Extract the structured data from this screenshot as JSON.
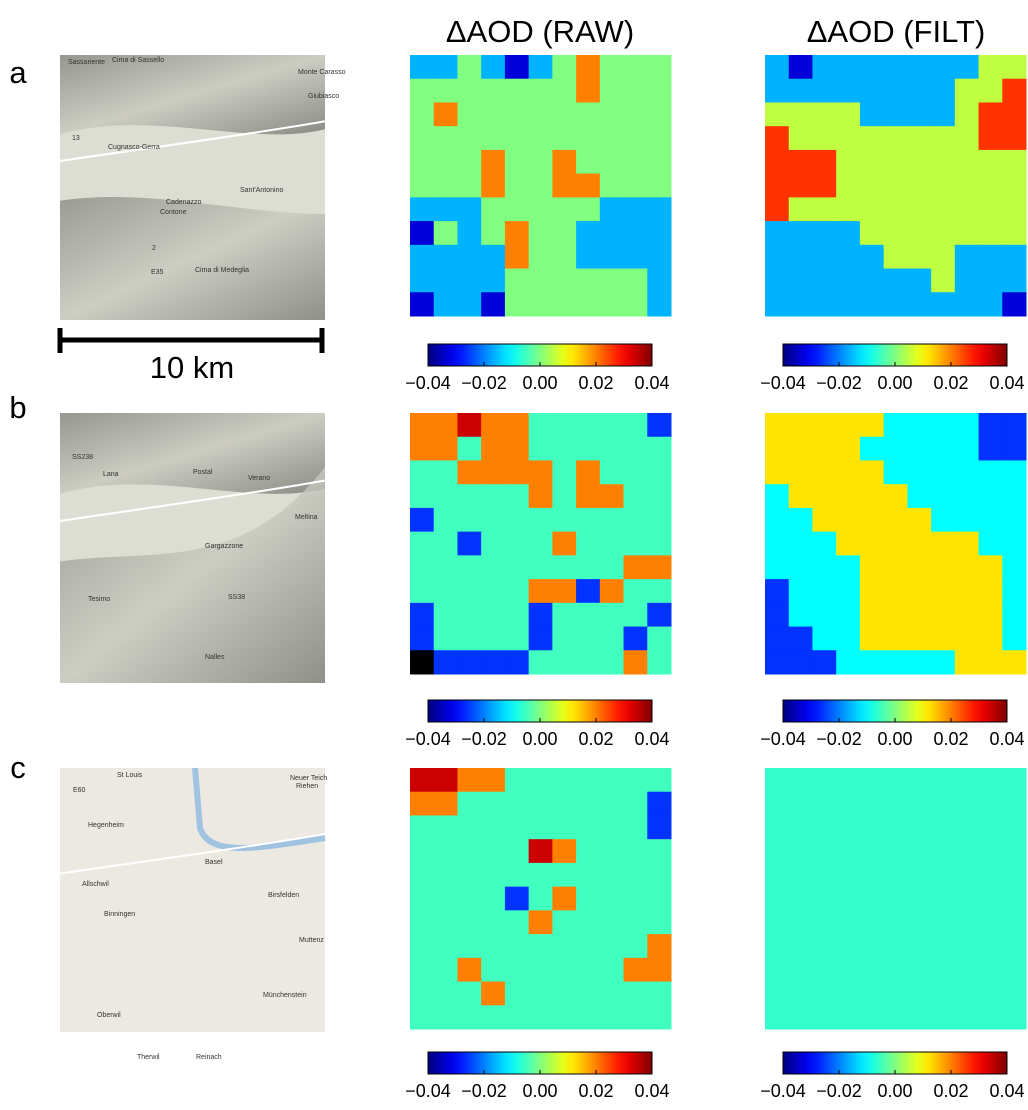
{
  "panel_labels": [
    "a",
    "b",
    "c"
  ],
  "titles": [
    "ΔAOD (RAW)",
    "ΔAOD (FILT)"
  ],
  "scale_bar": "10 km",
  "colorbar": {
    "clim": [
      -0.04,
      0.04
    ],
    "colormap": "jet",
    "ticks": [
      {
        "value": -0.04,
        "label": "−0.04"
      },
      {
        "value": -0.02,
        "label": "−0.02"
      },
      {
        "value": 0,
        "label": "0.00"
      },
      0.02,
      0.04
    ]
  },
  "rows": [
    {
      "map_labels": [
        "Sassariente",
        "Cima di Sassello",
        "Monte Carasso",
        "Cugnasco-Gerra",
        "Giubiasco",
        "Sant'Antonino",
        "Contone",
        "Cadenazzo",
        "Cima di Medeglia",
        "E35",
        "13",
        "2"
      ],
      "raw": [
        [
          -0.016,
          -0.016,
          0,
          -0.016,
          -0.033,
          -0.016,
          0,
          0.02,
          0,
          0,
          0
        ],
        [
          0,
          0,
          0,
          0,
          0,
          0,
          0,
          0.02,
          0,
          0,
          0
        ],
        [
          0,
          0.02,
          0,
          0,
          0,
          0,
          0,
          0,
          0,
          0,
          0
        ],
        [
          0,
          0,
          0,
          0,
          0,
          0,
          0,
          0,
          0,
          0,
          0
        ],
        [
          0,
          0,
          0,
          0.02,
          0,
          0,
          0.02,
          0,
          0,
          0,
          0
        ],
        [
          0,
          0,
          0,
          0.02,
          0,
          0,
          0.02,
          0.02,
          0,
          0,
          0
        ],
        [
          -0.016,
          -0.016,
          -0.016,
          0,
          0,
          0,
          0,
          0,
          -0.016,
          -0.016,
          -0.016
        ],
        [
          -0.033,
          0,
          -0.016,
          0,
          0.02,
          0,
          0,
          -0.016,
          -0.016,
          -0.016,
          -0.016
        ],
        [
          -0.016,
          -0.016,
          -0.016,
          -0.016,
          0.02,
          0,
          0,
          -0.016,
          -0.016,
          -0.016,
          -0.016
        ],
        [
          -0.016,
          -0.016,
          -0.016,
          -0.016,
          0,
          0,
          0,
          0,
          0,
          0,
          -0.016
        ],
        [
          -0.033,
          -0.016,
          -0.016,
          -0.033,
          0,
          0,
          0,
          0,
          0,
          0,
          -0.016
        ]
      ],
      "filt": [
        [
          -0.016,
          -0.033,
          -0.016,
          -0.016,
          -0.016,
          -0.016,
          -0.016,
          -0.016,
          -0.016,
          0.005,
          0.005
        ],
        [
          -0.016,
          -0.016,
          -0.016,
          -0.016,
          -0.016,
          -0.016,
          -0.016,
          -0.016,
          0.005,
          0.005,
          0.026
        ],
        [
          0.005,
          0.005,
          0.005,
          0.005,
          -0.016,
          -0.016,
          -0.016,
          -0.016,
          0.005,
          0.026,
          0.026
        ],
        [
          0.026,
          0.005,
          0.005,
          0.005,
          0.005,
          0.005,
          0.005,
          0.005,
          0.005,
          0.026,
          0.026
        ],
        [
          0.026,
          0.026,
          0.026,
          0.005,
          0.005,
          0.005,
          0.005,
          0.005,
          0.005,
          0.005,
          0.005
        ],
        [
          0.026,
          0.026,
          0.026,
          0.005,
          0.005,
          0.005,
          0.005,
          0.005,
          0.005,
          0.005,
          0.005
        ],
        [
          0.026,
          0.005,
          0.005,
          0.005,
          0.005,
          0.005,
          0.005,
          0.005,
          0.005,
          0.005,
          0.005
        ],
        [
          -0.016,
          -0.016,
          -0.016,
          -0.016,
          0.005,
          0.005,
          0.005,
          0.005,
          0.005,
          0.005,
          0.005
        ],
        [
          -0.016,
          -0.016,
          -0.016,
          -0.016,
          -0.016,
          0.005,
          0.005,
          0.005,
          -0.016,
          -0.016,
          -0.016
        ],
        [
          -0.016,
          -0.016,
          -0.016,
          -0.016,
          -0.016,
          -0.016,
          -0.016,
          0.005,
          -0.016,
          -0.016,
          -0.016
        ],
        [
          -0.016,
          -0.016,
          -0.016,
          -0.016,
          -0.016,
          -0.016,
          -0.016,
          -0.016,
          -0.016,
          -0.016,
          -0.033
        ]
      ]
    },
    {
      "map_labels": [
        "SS238",
        "Lana",
        "Postal",
        "Verano",
        "Gargazzone",
        "Meltina",
        "Tesimo",
        "Nalles",
        "SS38"
      ],
      "raw": [
        [
          0.02,
          0.02,
          0.034,
          0.02,
          0.02,
          -0.005,
          -0.005,
          -0.005,
          -0.005,
          -0.005,
          -0.026
        ],
        [
          0.02,
          0.02,
          -0.005,
          0.02,
          0.02,
          -0.005,
          -0.005,
          -0.005,
          -0.005,
          -0.005,
          -0.005
        ],
        [
          -0.005,
          -0.005,
          0.02,
          0.02,
          0.02,
          0.02,
          -0.005,
          0.02,
          -0.005,
          -0.005,
          -0.005
        ],
        [
          -0.005,
          -0.005,
          -0.005,
          -0.005,
          -0.005,
          0.02,
          -0.005,
          0.02,
          0.02,
          -0.005,
          -0.005
        ],
        [
          -0.026,
          -0.005,
          -0.005,
          -0.005,
          -0.005,
          -0.005,
          -0.005,
          -0.005,
          -0.005,
          -0.005,
          -0.005
        ],
        [
          -0.005,
          -0.005,
          -0.026,
          -0.005,
          -0.005,
          -0.005,
          0.02,
          -0.005,
          -0.005,
          -0.005,
          -0.005
        ],
        [
          -0.005,
          -0.005,
          -0.005,
          -0.005,
          -0.005,
          -0.005,
          -0.005,
          -0.005,
          -0.005,
          0.02,
          0.02
        ],
        [
          -0.005,
          -0.005,
          -0.005,
          -0.005,
          -0.005,
          0.02,
          0.02,
          -0.026,
          0.02,
          -0.005,
          -0.005
        ],
        [
          -0.026,
          -0.005,
          -0.005,
          -0.005,
          -0.005,
          -0.026,
          -0.005,
          -0.005,
          -0.005,
          -0.005,
          -0.026
        ],
        [
          -0.026,
          -0.005,
          -0.005,
          -0.005,
          -0.005,
          -0.026,
          -0.005,
          -0.005,
          -0.005,
          -0.026,
          -0.005
        ],
        [
          null,
          -0.026,
          -0.026,
          -0.026,
          -0.026,
          -0.005,
          -0.005,
          -0.005,
          -0.005,
          0.02,
          -0.005
        ]
      ],
      "filt": [
        [
          0.012,
          0.012,
          0.012,
          0.012,
          0.012,
          -0.01,
          -0.01,
          -0.01,
          -0.01,
          -0.026,
          -0.026
        ],
        [
          0.012,
          0.012,
          0.012,
          0.012,
          -0.01,
          -0.01,
          -0.01,
          -0.01,
          -0.01,
          -0.026,
          -0.026
        ],
        [
          0.012,
          0.012,
          0.012,
          0.012,
          0.012,
          -0.01,
          -0.01,
          -0.01,
          -0.01,
          -0.01,
          -0.01
        ],
        [
          -0.01,
          0.012,
          0.012,
          0.012,
          0.012,
          0.012,
          -0.01,
          -0.01,
          -0.01,
          -0.01,
          -0.01
        ],
        [
          -0.01,
          -0.01,
          0.012,
          0.012,
          0.012,
          0.012,
          0.012,
          -0.01,
          -0.01,
          -0.01,
          -0.01
        ],
        [
          -0.01,
          -0.01,
          -0.01,
          0.012,
          0.012,
          0.012,
          0.012,
          0.012,
          0.012,
          -0.01,
          -0.01
        ],
        [
          -0.01,
          -0.01,
          -0.01,
          -0.01,
          0.012,
          0.012,
          0.012,
          0.012,
          0.012,
          0.012,
          -0.01
        ],
        [
          -0.026,
          -0.01,
          -0.01,
          -0.01,
          0.012,
          0.012,
          0.012,
          0.012,
          0.012,
          0.012,
          -0.01
        ],
        [
          -0.026,
          -0.01,
          -0.01,
          -0.01,
          0.012,
          0.012,
          0.012,
          0.012,
          0.012,
          0.012,
          -0.01
        ],
        [
          -0.026,
          -0.026,
          -0.01,
          -0.01,
          0.012,
          0.012,
          0.012,
          0.012,
          0.012,
          0.012,
          -0.01
        ],
        [
          -0.026,
          -0.026,
          -0.026,
          -0.01,
          -0.01,
          -0.01,
          -0.01,
          -0.01,
          0.012,
          0.012,
          0.012
        ]
      ]
    },
    {
      "map_labels": [
        "St Louis",
        "Neuer Teich",
        "Riehen",
        "E60",
        "Hegenheim",
        "Basel",
        "Allschwil",
        "Birsfelden",
        "Binningen",
        "Muttenz",
        "Oberwil",
        "Münchenstein",
        "Therwil",
        "Reinach"
      ],
      "raw": [
        [
          0.034,
          0.034,
          0.02,
          0.02,
          -0.005,
          -0.005,
          -0.005,
          -0.005,
          -0.005,
          -0.005,
          -0.005
        ],
        [
          0.02,
          0.02,
          -0.005,
          -0.005,
          -0.005,
          -0.005,
          -0.005,
          -0.005,
          -0.005,
          -0.005,
          -0.026
        ],
        [
          -0.005,
          -0.005,
          -0.005,
          -0.005,
          -0.005,
          -0.005,
          -0.005,
          -0.005,
          -0.005,
          -0.005,
          -0.026
        ],
        [
          -0.005,
          -0.005,
          -0.005,
          -0.005,
          -0.005,
          0.034,
          0.02,
          -0.005,
          -0.005,
          -0.005,
          -0.005
        ],
        [
          -0.005,
          -0.005,
          -0.005,
          -0.005,
          -0.005,
          -0.005,
          -0.005,
          -0.005,
          -0.005,
          -0.005,
          -0.005
        ],
        [
          -0.005,
          -0.005,
          -0.005,
          -0.005,
          -0.026,
          -0.005,
          0.02,
          -0.005,
          -0.005,
          -0.005,
          -0.005
        ],
        [
          -0.005,
          -0.005,
          -0.005,
          -0.005,
          -0.005,
          0.02,
          -0.005,
          -0.005,
          -0.005,
          -0.005,
          -0.005
        ],
        [
          -0.005,
          -0.005,
          -0.005,
          -0.005,
          -0.005,
          -0.005,
          -0.005,
          -0.005,
          -0.005,
          -0.005,
          0.02
        ],
        [
          -0.005,
          -0.005,
          0.02,
          -0.005,
          -0.005,
          -0.005,
          -0.005,
          -0.005,
          -0.005,
          0.02,
          0.02
        ],
        [
          -0.005,
          -0.005,
          -0.005,
          0.02,
          -0.005,
          -0.005,
          -0.005,
          -0.005,
          -0.005,
          -0.005,
          -0.005
        ],
        [
          -0.005,
          -0.005,
          -0.005,
          -0.005,
          -0.005,
          -0.005,
          -0.005,
          -0.005,
          -0.005,
          -0.005,
          -0.005
        ]
      ],
      "filt": [
        [
          -0.006,
          -0.006,
          -0.006,
          -0.006,
          -0.006,
          -0.006,
          -0.006,
          -0.006,
          -0.006,
          -0.006,
          -0.006
        ],
        [
          -0.006,
          -0.006,
          -0.006,
          -0.006,
          -0.006,
          -0.006,
          -0.006,
          -0.006,
          -0.006,
          -0.006,
          -0.006
        ],
        [
          -0.006,
          -0.006,
          -0.006,
          -0.006,
          -0.006,
          -0.006,
          -0.006,
          -0.006,
          -0.006,
          -0.006,
          -0.006
        ],
        [
          -0.006,
          -0.006,
          -0.006,
          -0.006,
          -0.006,
          -0.006,
          -0.006,
          -0.006,
          -0.006,
          -0.006,
          -0.006
        ],
        [
          -0.006,
          -0.006,
          -0.006,
          -0.006,
          -0.006,
          -0.006,
          -0.006,
          -0.006,
          -0.006,
          -0.006,
          -0.006
        ],
        [
          -0.006,
          -0.006,
          -0.006,
          -0.006,
          -0.006,
          -0.006,
          -0.006,
          -0.006,
          -0.006,
          -0.006,
          -0.006
        ],
        [
          -0.006,
          -0.006,
          -0.006,
          -0.006,
          -0.006,
          -0.006,
          -0.006,
          -0.006,
          -0.006,
          -0.006,
          -0.006
        ],
        [
          -0.006,
          -0.006,
          -0.006,
          -0.006,
          -0.006,
          -0.006,
          -0.006,
          -0.006,
          -0.006,
          -0.006,
          -0.006
        ],
        [
          -0.006,
          -0.006,
          -0.006,
          -0.006,
          -0.006,
          -0.006,
          -0.006,
          -0.006,
          -0.006,
          -0.006,
          -0.006
        ],
        [
          -0.006,
          -0.006,
          -0.006,
          -0.006,
          -0.006,
          -0.006,
          -0.006,
          -0.006,
          -0.006,
          -0.006,
          -0.006
        ],
        [
          -0.006,
          -0.006,
          -0.006,
          -0.006,
          -0.006,
          -0.006,
          -0.006,
          -0.006,
          -0.006,
          -0.006,
          -0.006
        ]
      ]
    }
  ]
}
